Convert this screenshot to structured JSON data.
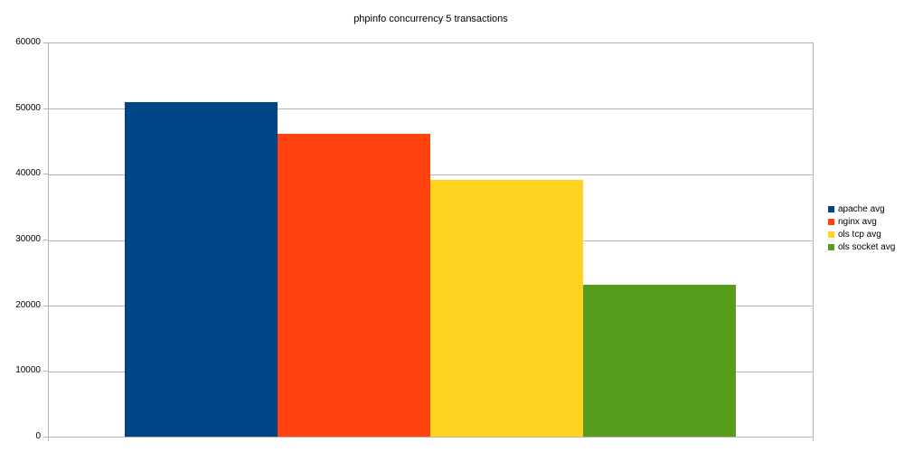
{
  "title": "phpinfo concurrency 5 transactions",
  "chart_data": {
    "type": "bar",
    "title": "phpinfo concurrency 5 transactions",
    "categories": [
      ""
    ],
    "series": [
      {
        "name": "apache avg",
        "values": [
          51100
        ],
        "color": "#004586"
      },
      {
        "name": "nginx avg",
        "values": [
          46200
        ],
        "color": "#ff420e"
      },
      {
        "name": "ols tcp avg",
        "values": [
          39200
        ],
        "color": "#ffd320"
      },
      {
        "name": "ols socket avg",
        "values": [
          23200
        ],
        "color": "#579d1c"
      }
    ],
    "xlabel": "",
    "ylabel": "",
    "ylim": [
      0,
      60000
    ],
    "yticks": [
      0,
      10000,
      20000,
      30000,
      40000,
      50000,
      60000
    ],
    "ytick_labels": [
      "0",
      "10000",
      "20000",
      "30000",
      "40000",
      "50000",
      "60000"
    ],
    "grid": "horizontal",
    "legend_position": "right",
    "colors": {
      "axis": "#b3b3b3",
      "gridline": "#b3b3b3",
      "text": "#000000",
      "background": "#ffffff"
    }
  }
}
